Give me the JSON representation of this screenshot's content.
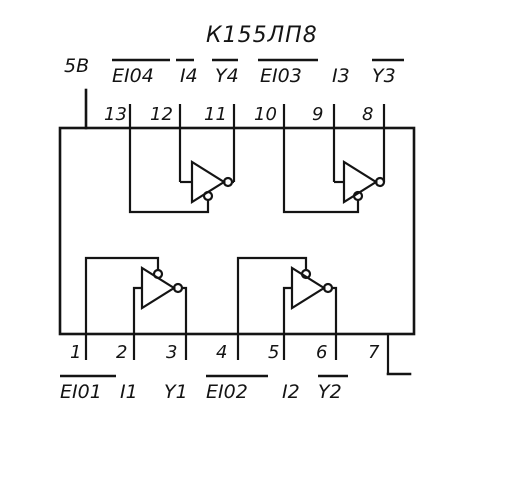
{
  "chip": {
    "title": "К155ЛП8"
  },
  "supply_label": "5В",
  "top_pins": [
    {
      "num": "13",
      "label": "EI04"
    },
    {
      "num": "12",
      "label": "I4"
    },
    {
      "num": "11",
      "label": "Y4"
    },
    {
      "num": "10",
      "label": "EI03"
    },
    {
      "num": "9",
      "label": "I3"
    },
    {
      "num": "8",
      "label": "Y3"
    }
  ],
  "bottom_pins": [
    {
      "num": "1",
      "label": "EI01"
    },
    {
      "num": "2",
      "label": "I1"
    },
    {
      "num": "3",
      "label": "Y1"
    },
    {
      "num": "4",
      "label": "EI02"
    },
    {
      "num": "5",
      "label": "I2"
    },
    {
      "num": "6",
      "label": "Y2"
    },
    {
      "num": "7",
      "label": ""
    }
  ]
}
